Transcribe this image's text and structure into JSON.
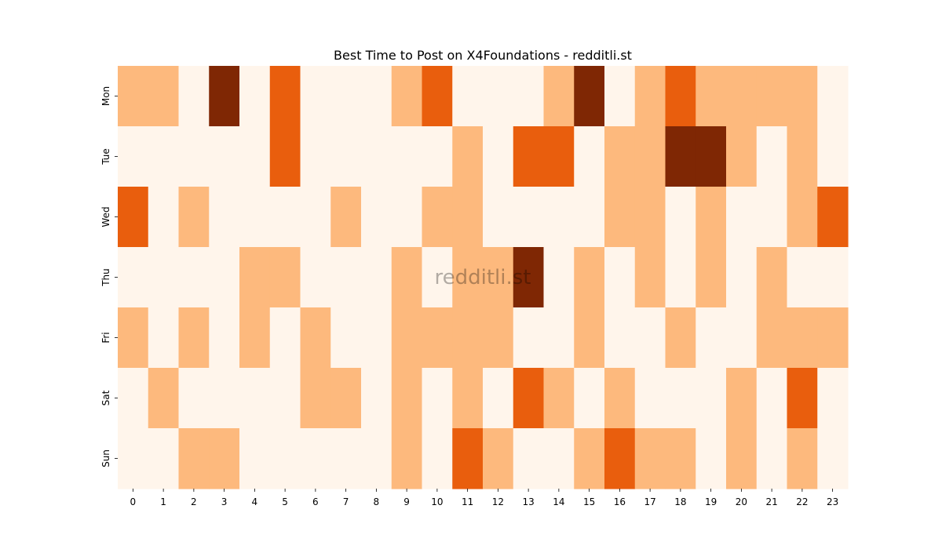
{
  "chart_data": {
    "type": "heatmap",
    "title": "Best Time to Post on X4Foundations - redditli.st",
    "watermark": "redditli.st",
    "x_categories": [
      "0",
      "1",
      "2",
      "3",
      "4",
      "5",
      "6",
      "7",
      "8",
      "9",
      "10",
      "11",
      "12",
      "13",
      "14",
      "15",
      "16",
      "17",
      "18",
      "19",
      "20",
      "21",
      "22",
      "23"
    ],
    "y_categories": [
      "Mon",
      "Tue",
      "Wed",
      "Thu",
      "Fri",
      "Sat",
      "Sun"
    ],
    "colormap": [
      "#fff5eb",
      "#fdb97d",
      "#e95e0d",
      "#7f2704"
    ],
    "legend": false,
    "values": [
      [
        1,
        1,
        0,
        3,
        0,
        2,
        0,
        0,
        0,
        1,
        2,
        0,
        0,
        0,
        1,
        3,
        0,
        1,
        2,
        1,
        1,
        1,
        1,
        0
      ],
      [
        0,
        0,
        0,
        0,
        0,
        2,
        0,
        0,
        0,
        0,
        0,
        1,
        0,
        2,
        2,
        0,
        1,
        1,
        3,
        3,
        1,
        0,
        1,
        0
      ],
      [
        2,
        0,
        1,
        0,
        0,
        0,
        0,
        1,
        0,
        0,
        1,
        1,
        0,
        0,
        0,
        0,
        1,
        1,
        0,
        1,
        0,
        0,
        1,
        2
      ],
      [
        0,
        0,
        0,
        0,
        1,
        1,
        0,
        0,
        0,
        1,
        0,
        1,
        1,
        3,
        0,
        1,
        0,
        1,
        0,
        1,
        0,
        1,
        0,
        0
      ],
      [
        1,
        0,
        1,
        0,
        1,
        0,
        1,
        0,
        0,
        1,
        1,
        1,
        1,
        0,
        0,
        1,
        0,
        0,
        1,
        0,
        0,
        1,
        1,
        1
      ],
      [
        0,
        1,
        0,
        0,
        0,
        0,
        1,
        1,
        0,
        1,
        0,
        1,
        0,
        2,
        1,
        0,
        1,
        0,
        0,
        0,
        1,
        0,
        2,
        0
      ],
      [
        0,
        0,
        1,
        1,
        0,
        0,
        0,
        0,
        0,
        1,
        0,
        2,
        1,
        0,
        0,
        1,
        2,
        1,
        1,
        0,
        1,
        0,
        1,
        0
      ]
    ]
  }
}
